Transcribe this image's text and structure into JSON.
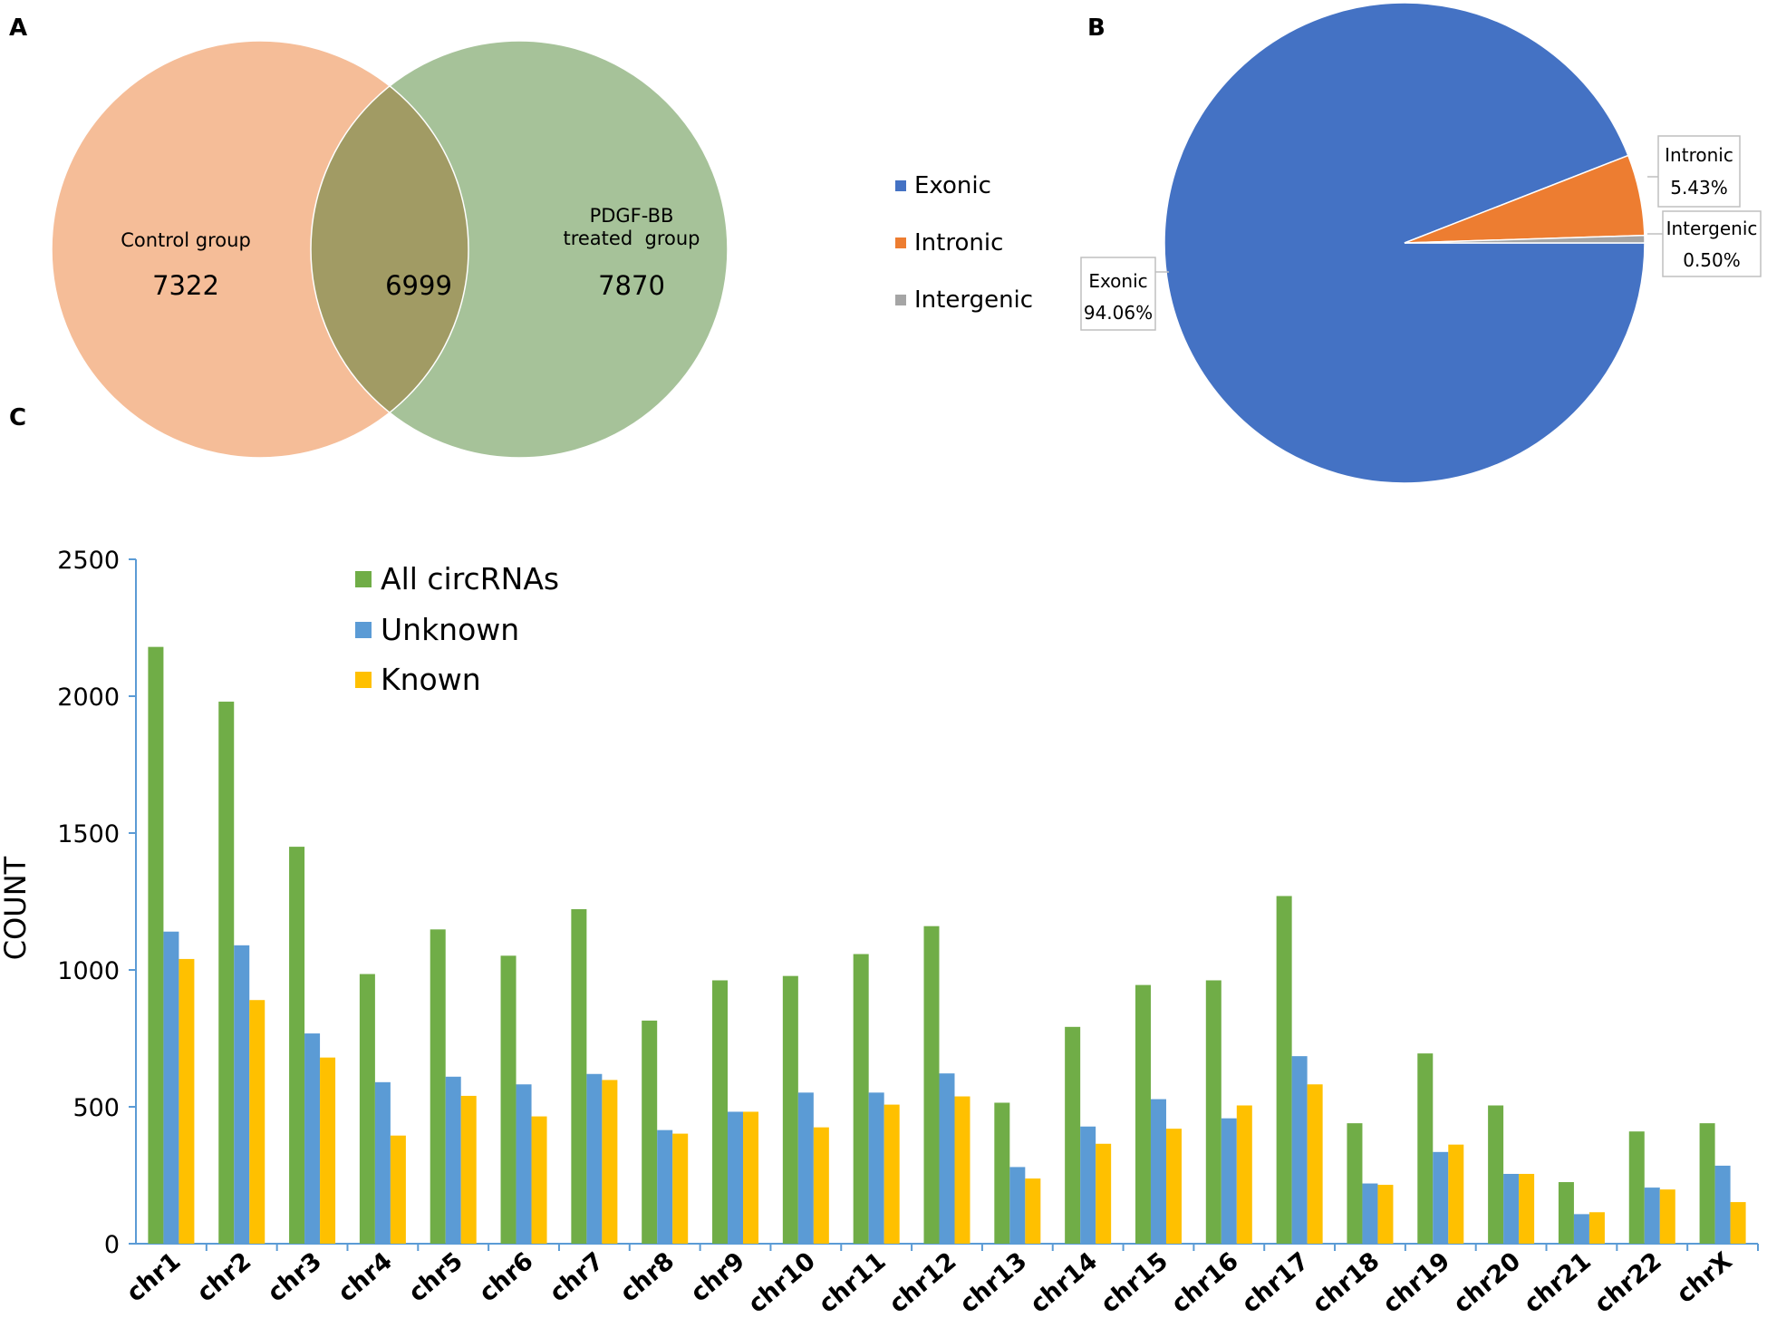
{
  "panels": {
    "a": "A",
    "b": "B",
    "c": "C"
  },
  "chart_data": [
    {
      "type": "venn",
      "sets": [
        {
          "name": "Control group",
          "only": 7322,
          "color": "#f5bd98"
        },
        {
          "name_line1": "PDGF-BB",
          "name_line2": "treated  group",
          "only": 7870,
          "color": "#a6c299"
        }
      ],
      "intersection": 6999,
      "intersection_color": "#a19b64"
    },
    {
      "type": "pie",
      "slices": [
        {
          "label": "Exonic",
          "value": 94.06,
          "value_text": "94.06%",
          "color": "#4472c4"
        },
        {
          "label": "Intronic",
          "value": 5.43,
          "value_text": "5.43%",
          "color": "#ed7d31"
        },
        {
          "label": "Intergenic",
          "value": 0.5,
          "value_text": "0.50%",
          "color": "#a5a5a5"
        }
      ],
      "legend": [
        "Exonic",
        "Intronic",
        "Intergenic"
      ]
    },
    {
      "type": "bar",
      "ylabel": "COUNT",
      "xlabel": "",
      "ylim": [
        0,
        2500
      ],
      "yticks": [
        0,
        500,
        1000,
        1500,
        2000,
        2500
      ],
      "categories": [
        "chr1",
        "chr2",
        "chr3",
        "chr4",
        "chr5",
        "chr6",
        "chr7",
        "chr8",
        "chr9",
        "chr10",
        "chr11",
        "chr12",
        "chr13",
        "chr14",
        "chr15",
        "chr16",
        "chr17",
        "chr18",
        "chr19",
        "chr20",
        "chr21",
        "chr22",
        "chrX"
      ],
      "series": [
        {
          "name": "All circRNAs",
          "color": "#70ad47",
          "values": [
            2180,
            1980,
            1450,
            985,
            1148,
            1052,
            1222,
            815,
            962,
            978,
            1058,
            1160,
            515,
            792,
            945,
            962,
            1270,
            440,
            695,
            505,
            225,
            410,
            440
          ]
        },
        {
          "name": "Unknown",
          "color": "#5b9bd5",
          "values": [
            1140,
            1090,
            768,
            590,
            610,
            582,
            620,
            415,
            482,
            552,
            552,
            622,
            280,
            428,
            528,
            458,
            685,
            220,
            335,
            255,
            108,
            205,
            285
          ]
        },
        {
          "name": "Known",
          "color": "#ffc000",
          "values": [
            1040,
            890,
            680,
            395,
            540,
            465,
            598,
            402,
            482,
            425,
            508,
            538,
            238,
            365,
            420,
            505,
            582,
            215,
            362,
            255,
            115,
            198,
            152
          ]
        }
      ],
      "legend_position": "top-left"
    }
  ]
}
